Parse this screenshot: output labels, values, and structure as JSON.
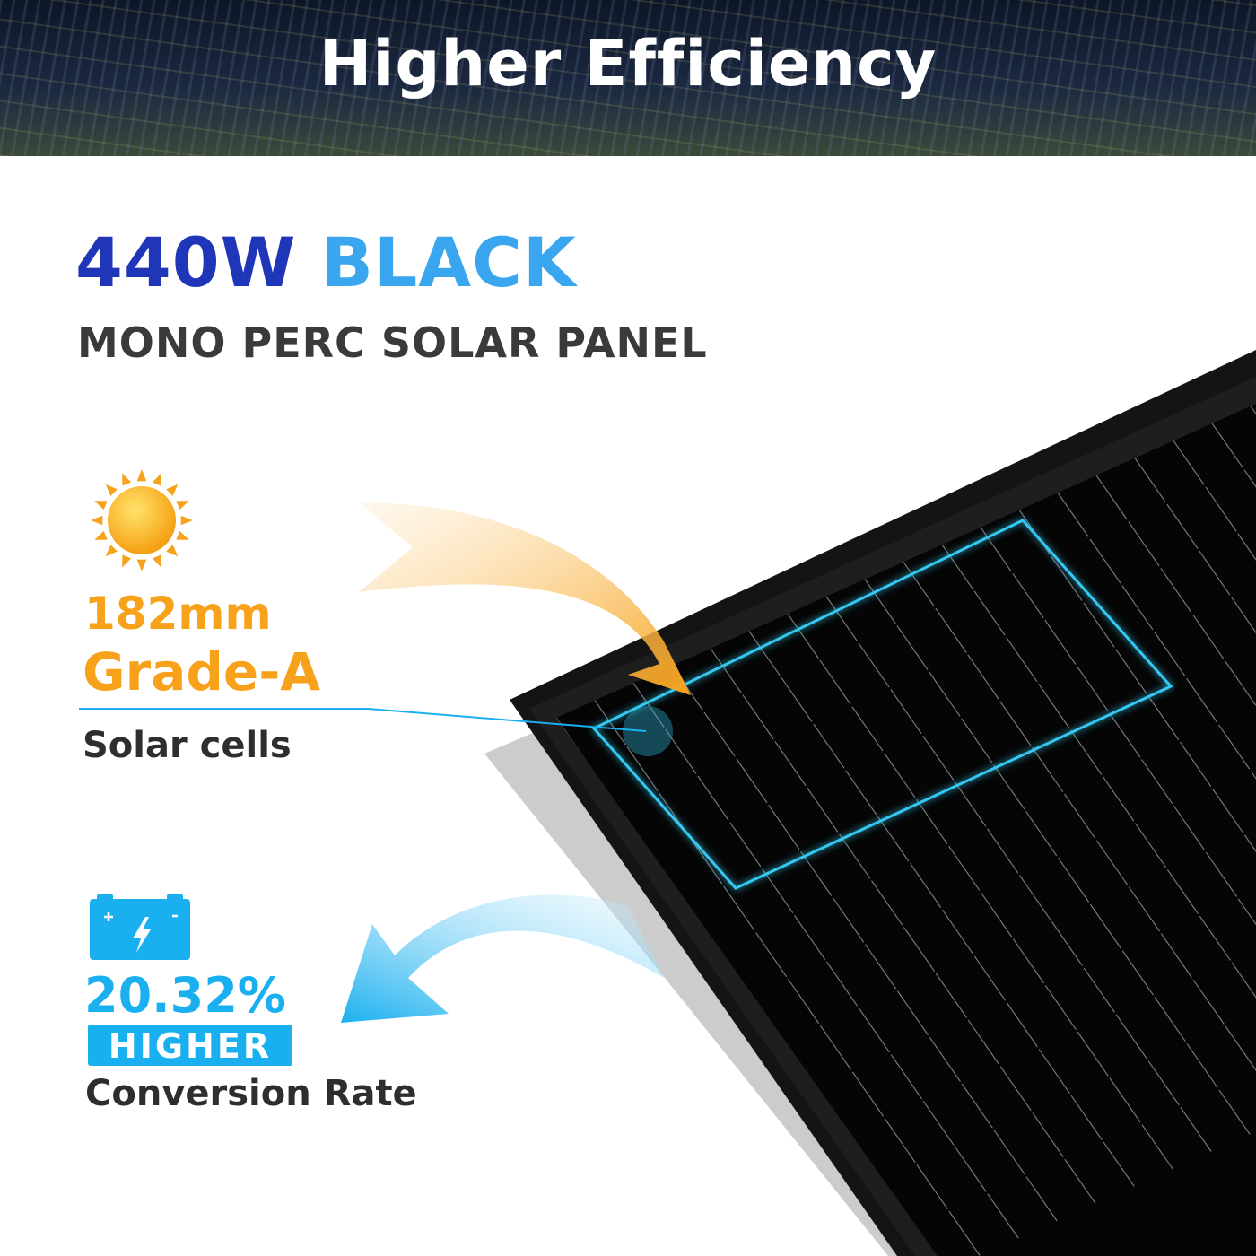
{
  "banner": {
    "title": "Higher Efficiency"
  },
  "headline": {
    "wattage": "440W",
    "color_word": "BLACK",
    "subtitle": "MONO PERC SOLAR PANEL"
  },
  "cells": {
    "size": "182mm",
    "grade": "Grade-A",
    "label": "Solar cells"
  },
  "conversion": {
    "percent": "20.32%",
    "badge": "HIGHER",
    "label": "Conversion Rate"
  },
  "colors": {
    "navy": "#1f36b8",
    "sky": "#3aa6ef",
    "orange": "#f7a21a",
    "cyan": "#1ab0ef",
    "highlight": "#35c8f0"
  },
  "icons": [
    "sun-icon",
    "battery-icon",
    "orange-arrow-icon",
    "blue-arrow-icon"
  ]
}
